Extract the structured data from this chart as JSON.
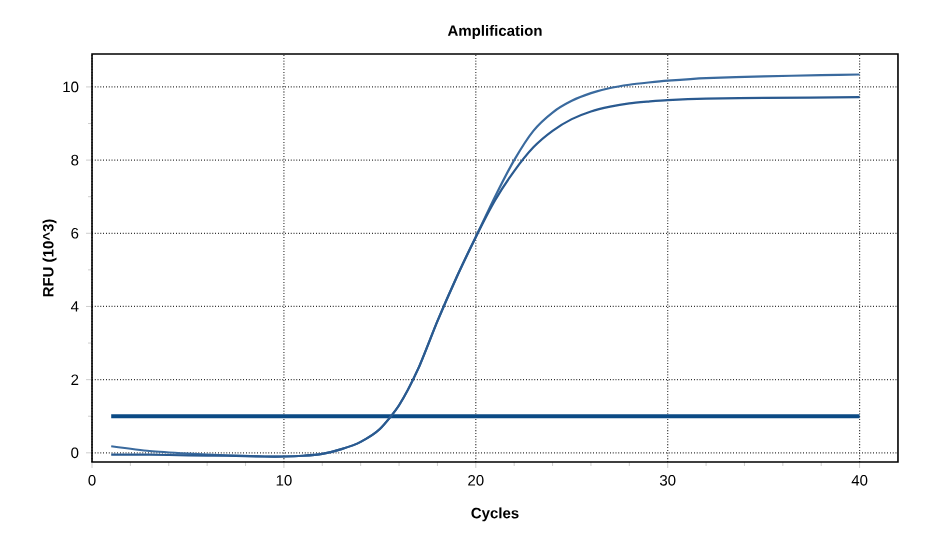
{
  "chart_data": {
    "type": "line",
    "title": "Amplification",
    "xlabel": "Cycles",
    "ylabel": "RFU (10^3)",
    "xlim": [
      0,
      42
    ],
    "ylim": [
      -0.25,
      10.9
    ],
    "xticks": [
      0,
      10,
      20,
      30,
      40
    ],
    "yticks": [
      0,
      2,
      4,
      6,
      8,
      10
    ],
    "grid": true,
    "series": [
      {
        "color": "#3a6a9e",
        "x": [
          1,
          3,
          5,
          7,
          9,
          10,
          11,
          12,
          13,
          14,
          15,
          16,
          17,
          18,
          19,
          20,
          21,
          22,
          23,
          24,
          25,
          26,
          27,
          28,
          29,
          30,
          32,
          35,
          38,
          40
        ],
        "values": [
          0.18,
          0.05,
          -0.02,
          -0.07,
          -0.1,
          -0.1,
          -0.08,
          -0.03,
          0.1,
          0.3,
          0.65,
          1.3,
          2.3,
          3.6,
          4.8,
          5.9,
          7.0,
          8.0,
          8.8,
          9.3,
          9.62,
          9.83,
          9.97,
          10.06,
          10.12,
          10.17,
          10.24,
          10.29,
          10.32,
          10.34
        ]
      },
      {
        "color": "#2a5a90",
        "x": [
          1,
          3,
          5,
          7,
          9,
          10,
          11,
          12,
          13,
          14,
          15,
          16,
          17,
          18,
          19,
          20,
          21,
          22,
          23,
          24,
          25,
          26,
          27,
          28,
          29,
          30,
          32,
          35,
          40
        ],
        "values": [
          -0.05,
          -0.05,
          -0.07,
          -0.08,
          -0.1,
          -0.1,
          -0.08,
          -0.03,
          0.1,
          0.3,
          0.65,
          1.3,
          2.3,
          3.6,
          4.8,
          5.9,
          6.9,
          7.7,
          8.35,
          8.8,
          9.12,
          9.33,
          9.46,
          9.55,
          9.6,
          9.64,
          9.68,
          9.7,
          9.72
        ]
      }
    ],
    "ref_lines": [
      {
        "axis": "y",
        "value": 1,
        "color": "#0b4a85"
      }
    ]
  }
}
